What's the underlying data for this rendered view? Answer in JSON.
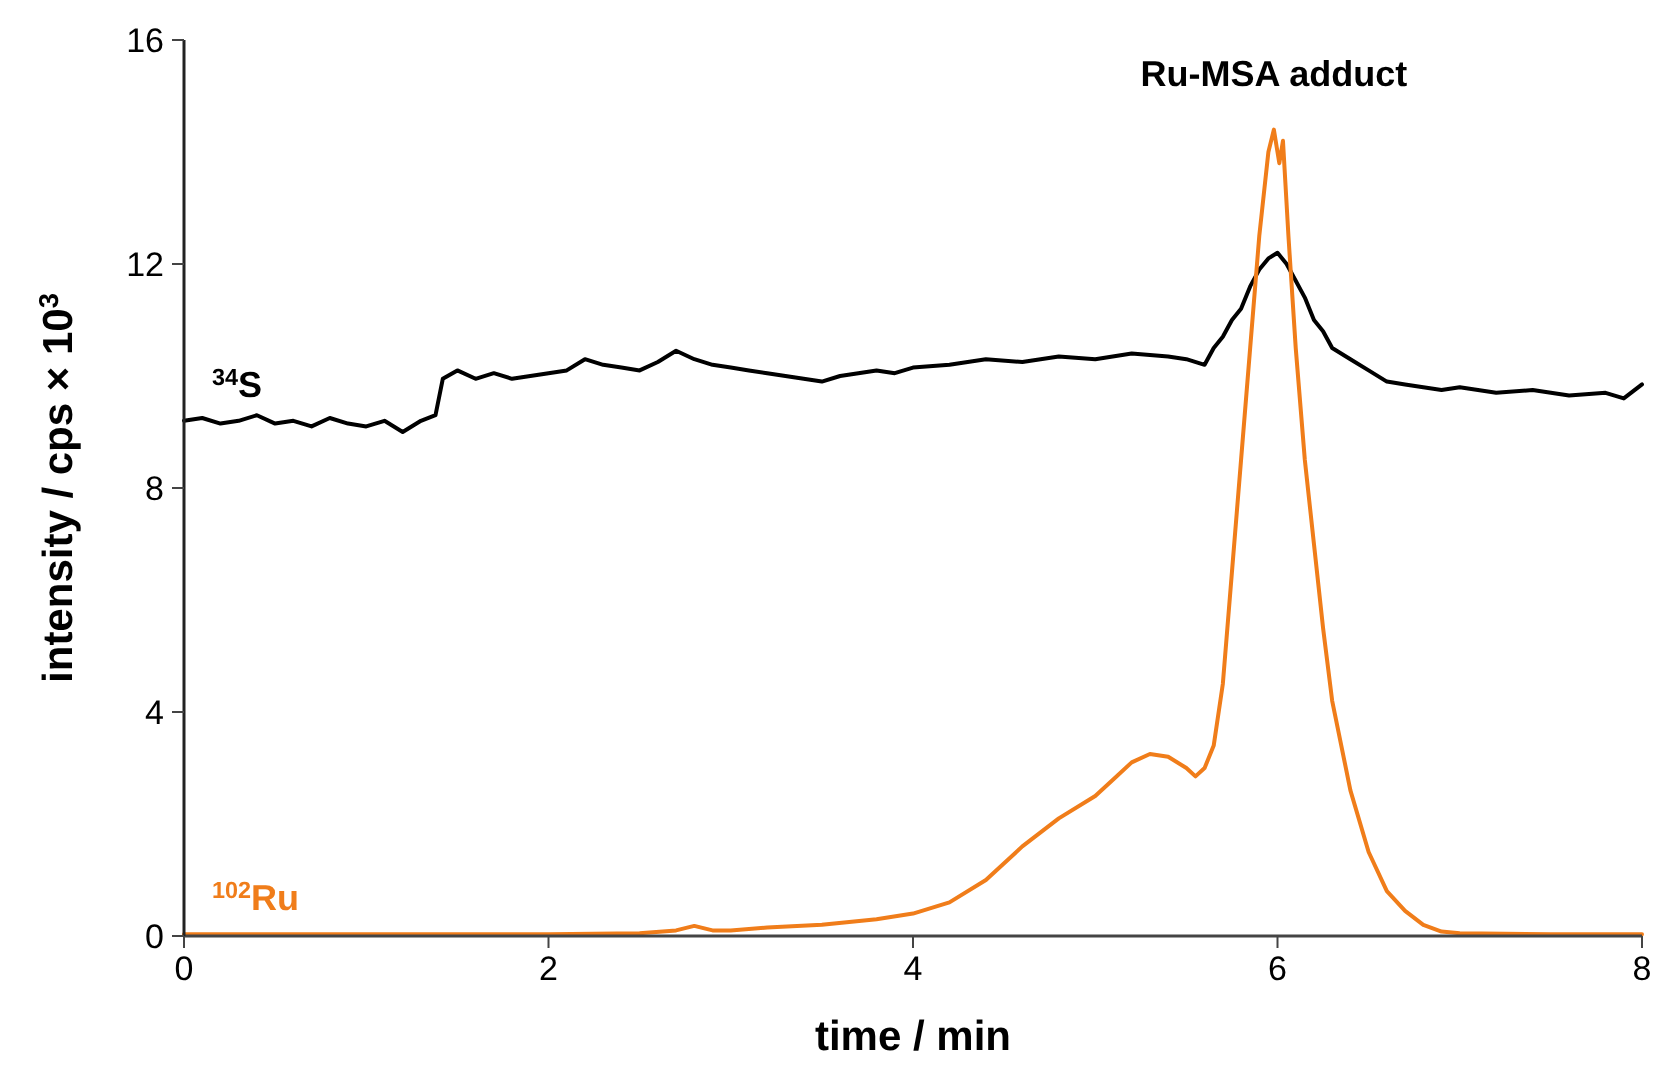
{
  "chart_data": {
    "type": "line",
    "xlabel": "time / min",
    "ylabel": "intensity / cps × 10$^{3}$",
    "xlim": [
      0,
      8
    ],
    "xticks": [
      0,
      2,
      4,
      6,
      8
    ],
    "ylim": [
      0,
      16
    ],
    "yticks": [
      0,
      4,
      8,
      12,
      16
    ],
    "grid": false,
    "marker": "none",
    "line_style": "solid",
    "annotations": [
      "Ru-MSA adduct"
    ],
    "series": [
      {
        "name": "$^{34}$S",
        "color": "#000000",
        "x": [
          0,
          0.1,
          0.2,
          0.3,
          0.4,
          0.5,
          0.6,
          0.7,
          0.8,
          0.9,
          1.0,
          1.1,
          1.2,
          1.3,
          1.38,
          1.42,
          1.5,
          1.6,
          1.7,
          1.8,
          1.9,
          2.0,
          2.1,
          2.2,
          2.3,
          2.4,
          2.5,
          2.6,
          2.7,
          2.8,
          2.9,
          3.0,
          3.1,
          3.2,
          3.3,
          3.4,
          3.5,
          3.6,
          3.7,
          3.8,
          3.9,
          4.0,
          4.2,
          4.4,
          4.6,
          4.8,
          5.0,
          5.2,
          5.4,
          5.5,
          5.6,
          5.65,
          5.7,
          5.75,
          5.8,
          5.85,
          5.9,
          5.95,
          6.0,
          6.05,
          6.1,
          6.15,
          6.2,
          6.25,
          6.3,
          6.4,
          6.5,
          6.6,
          6.7,
          6.8,
          6.9,
          7.0,
          7.2,
          7.4,
          7.6,
          7.8,
          7.9,
          8.0
        ],
        "values": [
          9.2,
          9.25,
          9.15,
          9.2,
          9.3,
          9.15,
          9.2,
          9.1,
          9.25,
          9.15,
          9.1,
          9.2,
          9.0,
          9.2,
          9.3,
          9.95,
          10.1,
          9.95,
          10.05,
          9.95,
          10.0,
          10.05,
          10.1,
          10.3,
          10.2,
          10.15,
          10.1,
          10.25,
          10.45,
          10.3,
          10.2,
          10.15,
          10.1,
          10.05,
          10.0,
          9.95,
          9.9,
          10.0,
          10.05,
          10.1,
          10.05,
          10.15,
          10.2,
          10.3,
          10.25,
          10.35,
          10.3,
          10.4,
          10.35,
          10.3,
          10.2,
          10.5,
          10.7,
          11.0,
          11.2,
          11.6,
          11.9,
          12.1,
          12.2,
          12.0,
          11.7,
          11.4,
          11.0,
          10.8,
          10.5,
          10.3,
          10.1,
          9.9,
          9.85,
          9.8,
          9.75,
          9.8,
          9.7,
          9.75,
          9.65,
          9.7,
          9.6,
          9.85
        ]
      },
      {
        "name": "$^{102}$Ru",
        "color": "#f07d1a",
        "x": [
          0,
          0.5,
          1.0,
          1.5,
          2.0,
          2.5,
          2.7,
          2.8,
          2.9,
          3.0,
          3.2,
          3.5,
          3.8,
          4.0,
          4.2,
          4.4,
          4.6,
          4.8,
          5.0,
          5.1,
          5.2,
          5.3,
          5.4,
          5.5,
          5.55,
          5.6,
          5.65,
          5.7,
          5.75,
          5.8,
          5.85,
          5.9,
          5.95,
          5.98,
          6.01,
          6.03,
          6.06,
          6.1,
          6.15,
          6.2,
          6.25,
          6.3,
          6.4,
          6.5,
          6.6,
          6.7,
          6.8,
          6.9,
          7.0,
          7.5,
          8.0
        ],
        "values": [
          0.03,
          0.03,
          0.03,
          0.03,
          0.03,
          0.05,
          0.1,
          0.18,
          0.1,
          0.1,
          0.15,
          0.2,
          0.3,
          0.4,
          0.6,
          1.0,
          1.6,
          2.1,
          2.5,
          2.8,
          3.1,
          3.25,
          3.2,
          3.0,
          2.85,
          3.0,
          3.4,
          4.5,
          6.5,
          8.5,
          10.5,
          12.5,
          14.0,
          14.4,
          13.8,
          14.2,
          12.5,
          10.5,
          8.5,
          7.0,
          5.5,
          4.2,
          2.6,
          1.5,
          0.8,
          0.45,
          0.2,
          0.08,
          0.05,
          0.03,
          0.03
        ]
      }
    ]
  }
}
